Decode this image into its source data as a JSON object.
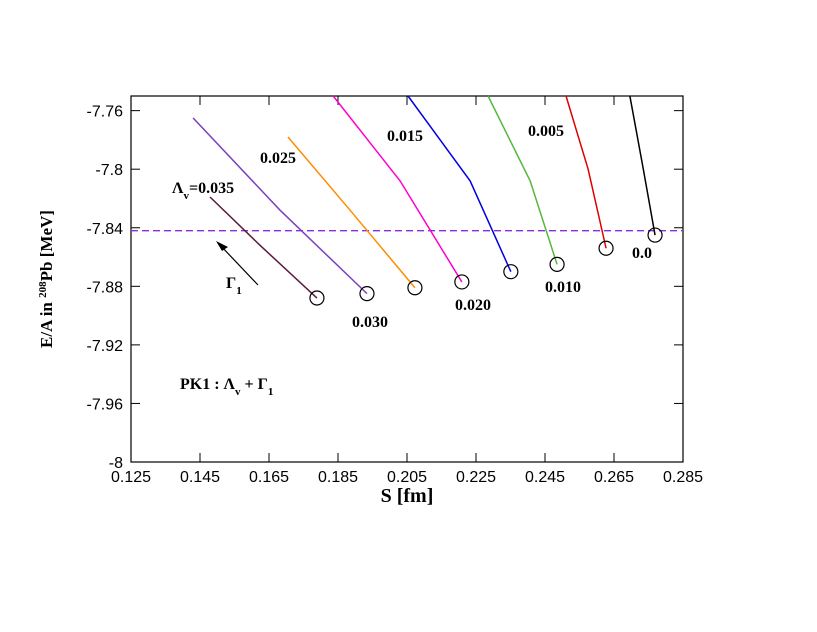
{
  "chart_data": {
    "type": "line",
    "xlabel": "S [fm]",
    "ylabel": [
      "E/A in ",
      "208",
      "Pb [MeV]"
    ],
    "xlim": [
      0.125,
      0.285
    ],
    "xticks": [
      0.125,
      0.145,
      0.165,
      0.185,
      0.205,
      0.225,
      0.245,
      0.265,
      0.285
    ],
    "ylim": [
      -8,
      -7.75
    ],
    "yticks": [
      -8,
      -7.96,
      -7.92,
      -7.88,
      -7.84,
      -7.8,
      -7.76
    ],
    "reference_line": {
      "y": -7.842,
      "color": "#8a2be2"
    },
    "series": [
      {
        "name": "0.0",
        "color": "#000000",
        "x": [
          0.2696,
          0.2735,
          0.2769
        ],
        "values": [
          -7.75,
          -7.8,
          -7.845
        ]
      },
      {
        "name": "0.005",
        "color": "#e00000",
        "x": [
          0.2511,
          0.2575,
          0.2627
        ],
        "values": [
          -7.75,
          -7.8,
          -7.854
        ]
      },
      {
        "name": "0.010",
        "color": "#55b83a",
        "x": [
          0.2285,
          0.2407,
          0.2485
        ],
        "values": [
          -7.75,
          -7.808,
          -7.865
        ]
      },
      {
        "name": "0.015",
        "color": "#0000e0",
        "x": [
          0.2053,
          0.2233,
          0.2351
        ],
        "values": [
          -7.75,
          -7.808,
          -7.87
        ]
      },
      {
        "name": "0.020",
        "color": "#ff00cc",
        "x": [
          0.1836,
          0.203,
          0.2209
        ],
        "values": [
          -7.75,
          -7.808,
          -7.877
        ]
      },
      {
        "name": "0.025",
        "color": "#ff8c00",
        "x": [
          0.1705,
          0.1885,
          0.2073
        ],
        "values": [
          -7.778,
          -7.828,
          -7.881
        ]
      },
      {
        "name": "0.030",
        "color": "#7b3fc4",
        "x": [
          0.143,
          0.1682,
          0.1934
        ],
        "values": [
          -7.765,
          -7.828,
          -7.885
        ]
      },
      {
        "name": [
          "Λ",
          "v",
          "=0.035"
        ],
        "color": "#5c1a3c",
        "x": [
          0.1479,
          0.1624,
          0.1789
        ],
        "values": [
          -7.819,
          -7.852,
          -7.888
        ]
      }
    ],
    "annotations": [
      [
        "Γ",
        "1"
      ],
      [
        "PK1 : Λ",
        "v",
        " + Γ",
        "1"
      ]
    ]
  }
}
